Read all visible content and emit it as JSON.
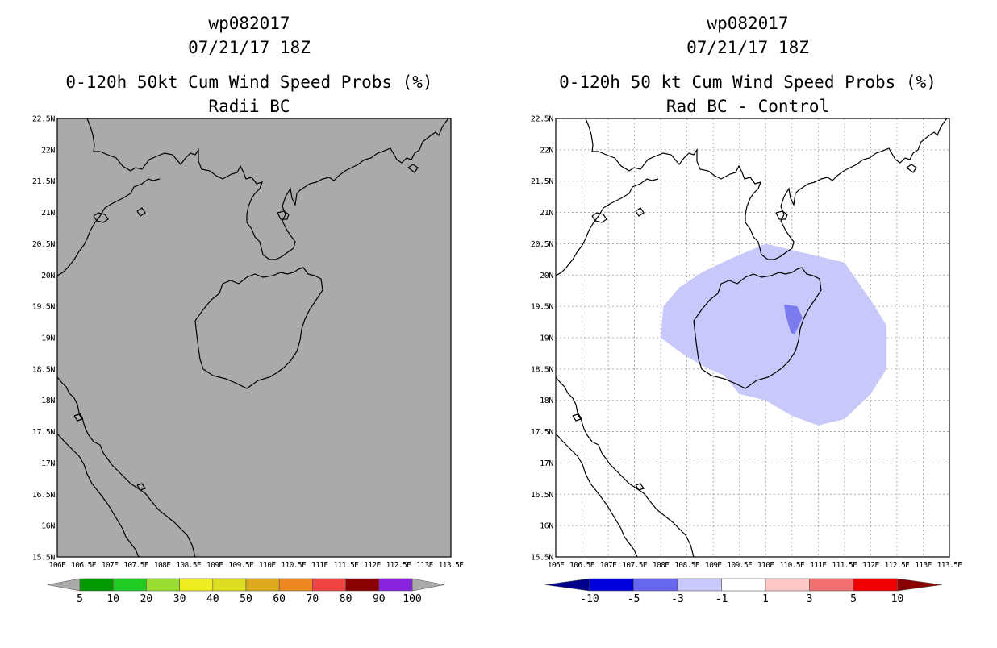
{
  "chart_data": [
    {
      "type": "heatmap",
      "storm_id": "wp082017",
      "datetime": "07/21/17 18Z",
      "title": "0-120h 50kt Cum Wind Speed Probs (%)",
      "subtitle": "Radii BC",
      "xlim": [
        106,
        113.5
      ],
      "ylim": [
        15.5,
        22.5
      ],
      "x_ticks": [
        "106E",
        "106.5E",
        "107E",
        "107.5E",
        "108E",
        "108.5E",
        "109E",
        "109.5E",
        "110E",
        "110.5E",
        "111E",
        "111.5E",
        "112E",
        "112.5E",
        "113E",
        "113.5E"
      ],
      "y_ticks": [
        "15.5N",
        "16N",
        "16.5N",
        "17N",
        "17.5N",
        "18N",
        "18.5N",
        "19N",
        "19.5N",
        "20N",
        "20.5N",
        "21N",
        "21.5N",
        "22N",
        "22.5N"
      ],
      "grid": false,
      "field_fill": "#aaaaaa",
      "colorbar": {
        "labels": [
          "5",
          "10",
          "20",
          "30",
          "40",
          "50",
          "60",
          "70",
          "80",
          "90",
          "100"
        ],
        "colors": [
          "#009900",
          "#22cc22",
          "#99dd33",
          "#eeee22",
          "#dddd22",
          "#ddaa22",
          "#ee8822",
          "#ee4444",
          "#880000",
          "#8822dd"
        ],
        "under_color": "#aaaaaa",
        "over_color": "#aaaaaa"
      },
      "regions": []
    },
    {
      "type": "heatmap",
      "storm_id": "wp082017",
      "datetime": "07/21/17 18Z",
      "title": "0-120h 50 kt Cum Wind Speed Probs (%)",
      "subtitle": "Rad BC - Control",
      "xlim": [
        106,
        113.5
      ],
      "ylim": [
        15.5,
        22.5
      ],
      "x_ticks": [
        "106E",
        "106.5E",
        "107E",
        "107.5E",
        "108E",
        "108.5E",
        "109E",
        "109.5E",
        "110E",
        "110.5E",
        "111E",
        "111.5E",
        "112E",
        "112.5E",
        "113E",
        "113.5E"
      ],
      "y_ticks": [
        "15.5N",
        "16N",
        "16.5N",
        "17N",
        "17.5N",
        "18N",
        "18.5N",
        "19N",
        "19.5N",
        "20N",
        "20.5N",
        "21N",
        "21.5N",
        "22N",
        "22.5N"
      ],
      "grid": true,
      "field_fill": "#ffffff",
      "colorbar": {
        "labels": [
          "-10",
          "-5",
          "-3",
          "-1",
          "1",
          "3",
          "5",
          "10"
        ],
        "colors": [
          "#0000dd",
          "#6666ee",
          "#c8c8fa",
          "#ffffff",
          "#ffc8c8",
          "#f27070",
          "#ee0000"
        ],
        "under_color": "#00008b",
        "over_color": "#8b0000"
      },
      "regions": [
        {
          "name": "-3 to -1",
          "color": "#c8c8fa",
          "points": [
            [
              110,
              20.5
            ],
            [
              110.5,
              20.4
            ],
            [
              111.5,
              20.2
            ],
            [
              112,
              19.6
            ],
            [
              112.3,
              19.2
            ],
            [
              112.3,
              18.5
            ],
            [
              112,
              18.1
            ],
            [
              111.5,
              17.7
            ],
            [
              111,
              17.6
            ],
            [
              110.5,
              17.75
            ],
            [
              110,
              18
            ],
            [
              109.5,
              18.1
            ],
            [
              109.2,
              18.4
            ],
            [
              108.8,
              18.55
            ],
            [
              108.4,
              18.75
            ],
            [
              108,
              19
            ],
            [
              108.05,
              19.5
            ],
            [
              108.35,
              19.8
            ],
            [
              108.8,
              20.05
            ],
            [
              109.3,
              20.25
            ]
          ]
        },
        {
          "name": "-5 to -3",
          "color": "#7b7bee",
          "points": [
            [
              110.35,
              19.53
            ],
            [
              110.6,
              19.5
            ],
            [
              110.7,
              19.32
            ],
            [
              110.55,
              19.05
            ],
            [
              110.48,
              19.08
            ],
            [
              110.38,
              19.35
            ]
          ]
        }
      ]
    }
  ]
}
